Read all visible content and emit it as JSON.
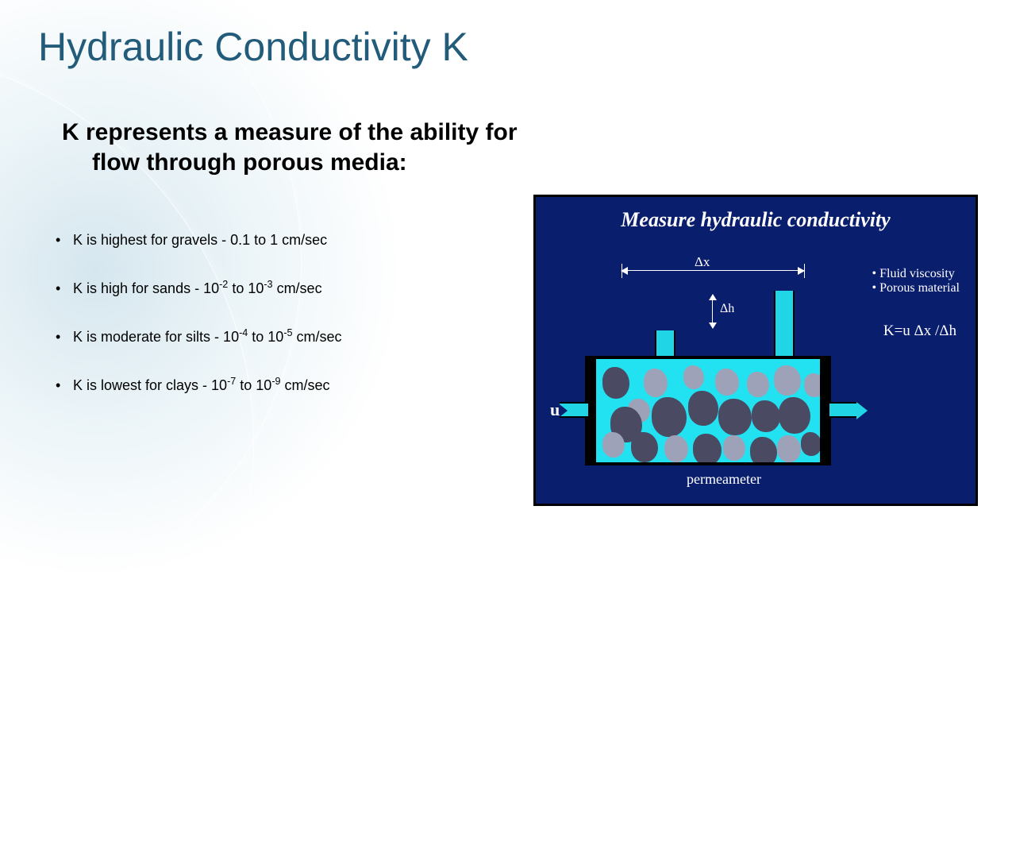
{
  "title": "Hydraulic Conductivity K",
  "subheading": {
    "line1": "K represents a measure of the ability for",
    "line2": "flow through porous media:"
  },
  "bullets": [
    {
      "pre": "K is highest for gravels - 0.1 to 1 cm/sec",
      "sup1": "",
      "mid": "",
      "sup2": "",
      "post": ""
    },
    {
      "pre": "K is high for sands - 10",
      "sup1": "-2",
      "mid": " to 10",
      "sup2": "-3",
      "post": " cm/sec"
    },
    {
      "pre": "K is moderate for silts - 10",
      "sup1": "-4",
      "mid": "  to 10",
      "sup2": "-5",
      "post": " cm/sec"
    },
    {
      "pre": "K is lowest for clays - 10",
      "sup1": "-7",
      "mid": " to 10",
      "sup2": "-9",
      "post": " cm/sec"
    }
  ],
  "diagram": {
    "title": "Measure hydraulic conductivity",
    "factors": [
      "Fluid viscosity",
      "Porous material"
    ],
    "formula": "K=u Δx /Δh",
    "u_label": "u",
    "dx_label": "Δx",
    "dh_label": "Δh",
    "perme_label": "permeameter",
    "colors": {
      "panel_bg": "#0a1e6e",
      "water": "#22e2f2",
      "grain_dark": "#4a4a63",
      "grain_light": "#9ea2b8"
    },
    "grains": [
      [
        8,
        10,
        34,
        40,
        "d"
      ],
      [
        40,
        50,
        28,
        30,
        "l"
      ],
      [
        18,
        60,
        40,
        45,
        "d"
      ],
      [
        60,
        12,
        30,
        36,
        "l"
      ],
      [
        70,
        48,
        44,
        50,
        "d"
      ],
      [
        110,
        8,
        26,
        30,
        "l"
      ],
      [
        116,
        40,
        38,
        44,
        "d"
      ],
      [
        150,
        12,
        30,
        34,
        "l"
      ],
      [
        154,
        50,
        42,
        46,
        "d"
      ],
      [
        190,
        16,
        28,
        32,
        "l"
      ],
      [
        196,
        52,
        36,
        40,
        "d"
      ],
      [
        224,
        8,
        34,
        38,
        "l"
      ],
      [
        230,
        48,
        40,
        46,
        "d"
      ],
      [
        262,
        18,
        26,
        30,
        "l"
      ],
      [
        44,
        92,
        34,
        38,
        "d"
      ],
      [
        8,
        92,
        28,
        32,
        "l"
      ],
      [
        86,
        96,
        30,
        34,
        "l"
      ],
      [
        122,
        94,
        36,
        40,
        "d"
      ],
      [
        160,
        96,
        28,
        32,
        "l"
      ],
      [
        194,
        98,
        34,
        38,
        "d"
      ],
      [
        228,
        96,
        30,
        34,
        "l"
      ],
      [
        258,
        92,
        26,
        30,
        "d"
      ]
    ]
  },
  "colors": {
    "title": "#225c7a",
    "text": "#000000"
  }
}
